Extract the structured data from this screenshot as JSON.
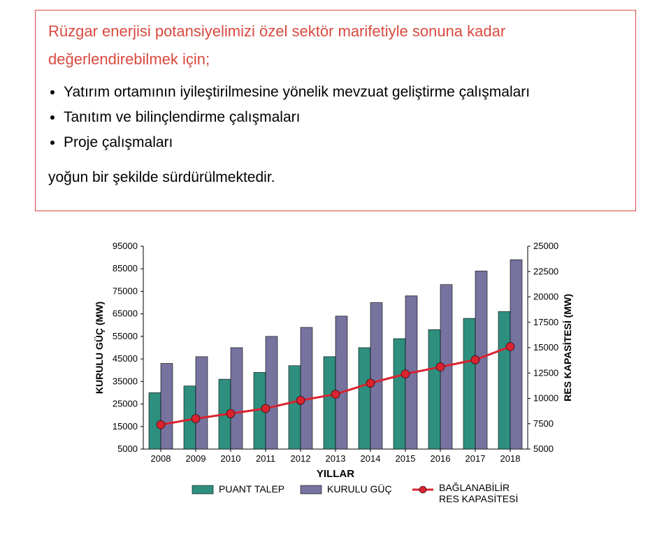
{
  "textbox": {
    "headline_line1": "Rüzgar enerjisi potansiyelimizi özel sektör marifetiyle sonuna kadar",
    "headline_line2": "değerlendirebilmek için;",
    "bullets": [
      "Yatırım ortamının iyileştirilmesine yönelik mevzuat geliştirme çalışmaları",
      "Tanıtım ve bilinçlendirme çalışmaları",
      "Proje çalışmaları"
    ],
    "closing": "yoğun bir şekilde sürdürülmektedir.",
    "headline_color": "#d94a3f",
    "border_color": "#d94a3f"
  },
  "chart": {
    "type": "bar+line",
    "categories": [
      "2008",
      "2009",
      "2010",
      "2011",
      "2012",
      "2013",
      "2014",
      "2015",
      "2016",
      "2017",
      "2018"
    ],
    "left_axis": {
      "label": "KURULU GÜÇ (MW)",
      "min": 5000,
      "max": 95000,
      "step": 10000,
      "font_size": 14,
      "font_weight": "bold"
    },
    "right_axis": {
      "label": "RES KAPASİTESİ (MW)",
      "min": 5000,
      "max": 25000,
      "step": 2500,
      "font_size": 14,
      "font_weight": "bold"
    },
    "series": {
      "puant_talep": {
        "label": "PUANT TALEP",
        "color": "#2f8f7f",
        "values": [
          30000,
          33000,
          36000,
          39000,
          42000,
          46000,
          50000,
          54000,
          58000,
          63000,
          66000
        ]
      },
      "kurulu_guc": {
        "label": "KURULU GÜÇ",
        "color": "#76739f",
        "values": [
          43000,
          46000,
          50000,
          55000,
          59000,
          64000,
          70000,
          73000,
          78000,
          84000,
          89000
        ]
      },
      "res": {
        "label": "BAĞLANABİLİR RES KAPASİTESİ",
        "color": "#d9232f",
        "values": [
          7400,
          8000,
          8500,
          9000,
          9800,
          10400,
          11500,
          12400,
          13100,
          13800,
          15100
        ]
      }
    },
    "x_label": "YILLAR",
    "bar_width": 0.34,
    "bar_border": "#000000",
    "plot_bg": "#ffffff",
    "axis_line_color": "#000000",
    "tick_font_size": 13,
    "xlabel_font_size": 15,
    "legend_font_size": 14,
    "line_width": 3,
    "marker_size": 6
  }
}
